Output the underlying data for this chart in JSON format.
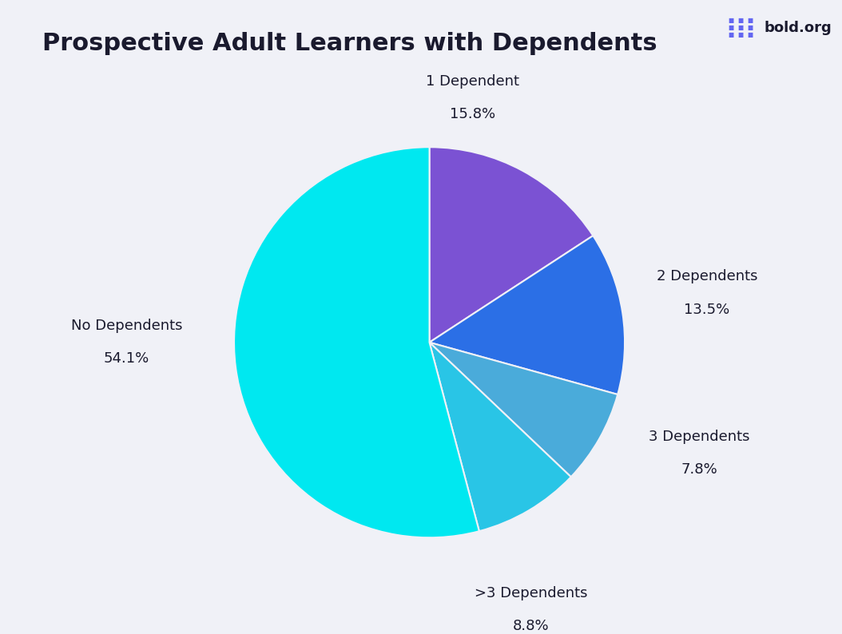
{
  "title": "Prospective Adult Learners with Dependents",
  "title_fontsize": 22,
  "title_fontweight": "bold",
  "background_color": "#f0f1f7",
  "slices": [
    {
      "label": "1 Dependent",
      "pct": 15.8,
      "color": "#7B52D3"
    },
    {
      "label": "2 Dependents",
      "pct": 13.5,
      "color": "#2B6FE6"
    },
    {
      "label": "3 Dependents",
      "pct": 7.8,
      "color": "#4AABDA"
    },
    {
      "label": ">3 Dependents",
      "pct": 8.8,
      "color": "#29C5E6"
    },
    {
      "label": "No Dependents",
      "pct": 54.1,
      "color": "#00E8F0"
    }
  ],
  "text_color": "#1a1a2e",
  "logo_color": "#6366f1"
}
